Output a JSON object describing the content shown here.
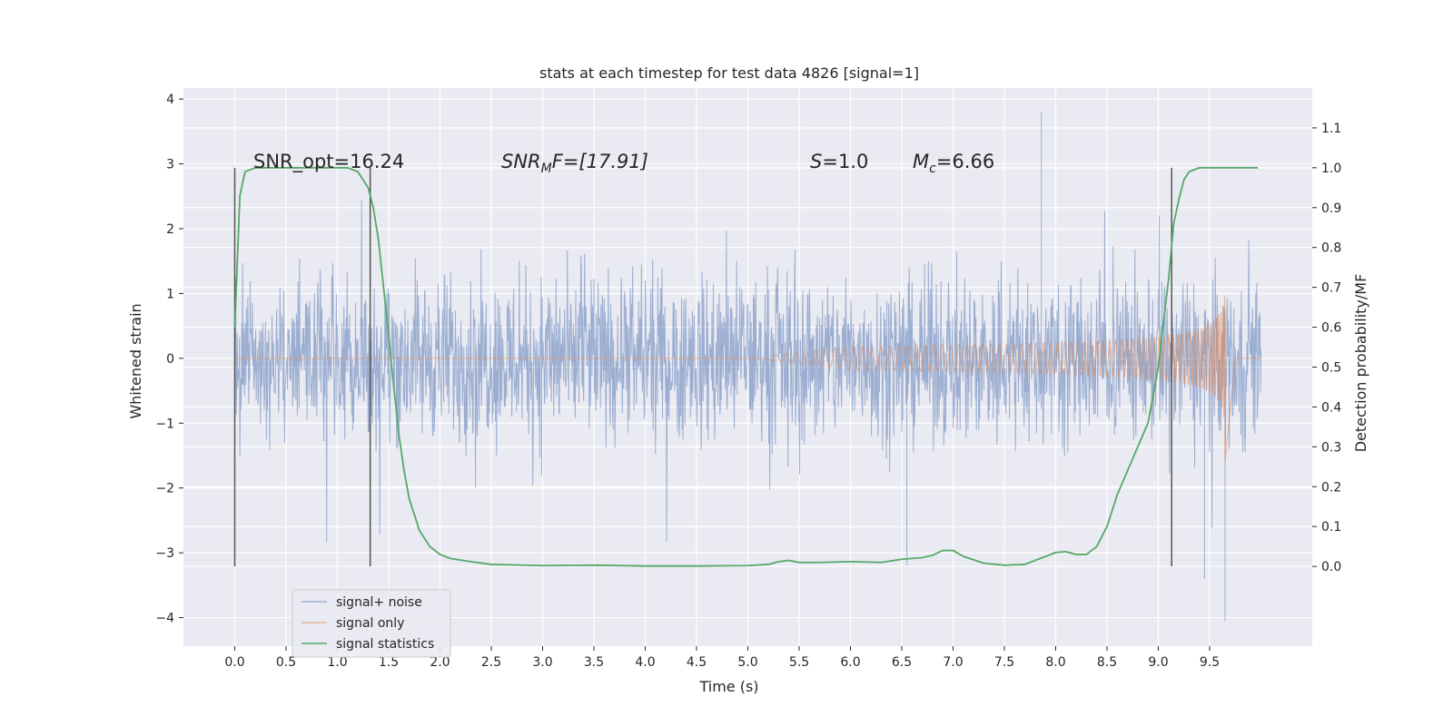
{
  "chart_data": {
    "type": "line",
    "title": "stats at each timestep for test data 4826 [signal=1]",
    "xlabel": "Time (s)",
    "ylabel": "Whitened strain",
    "ylabel_right": "Detection probability/MF",
    "xlim": [
      -0.5,
      10.5
    ],
    "ylim": [
      -4.44,
      4.17
    ],
    "ylim_right": [
      -0.2,
      1.2
    ],
    "x_ticks": [
      "0.0",
      "0.5",
      "1.0",
      "1.5",
      "2.0",
      "2.5",
      "3.0",
      "3.5",
      "4.0",
      "4.5",
      "5.0",
      "5.5",
      "6.0",
      "6.5",
      "7.0",
      "7.5",
      "8.0",
      "8.5",
      "9.0",
      "9.5"
    ],
    "y_ticks": [
      "4",
      "3",
      "2",
      "1",
      "0",
      "−1",
      "−2",
      "−3",
      "−4"
    ],
    "y_ticks_right": [
      "1.1",
      "1.0",
      "0.9",
      "0.8",
      "0.7",
      "0.6",
      "0.5",
      "0.4",
      "0.3",
      "0.2",
      "0.1",
      "0.0"
    ],
    "annotations": {
      "snr_opt": "SNR_opt=16.24",
      "snr_mf_main": "SNR",
      "snr_mf_sub": "M",
      "snr_mf_rest": "F=[17.91]",
      "s_main": "S",
      "s_rest": "=1.0",
      "mc_main": "M",
      "mc_sub": "c",
      "mc_rest": "=6.66"
    },
    "vertical_markers": [
      0.0,
      1.32,
      9.13
    ],
    "noise": {
      "t_start": 0.0,
      "t_end": 10.0,
      "typical_range": [
        -1.3,
        1.7
      ],
      "min": -4.05,
      "max": 3.8
    },
    "chirp": {
      "start": 5.2,
      "merger": 9.65,
      "peak_amplitude": 1.0,
      "ringdown_end": 9.75
    },
    "series": [
      {
        "name": "signal+ noise",
        "color": "#4c72b0",
        "axis": "left"
      },
      {
        "name": "signal only",
        "color": "#dd8452",
        "axis": "left"
      },
      {
        "name": "signal statistics",
        "color": "#55a868",
        "axis": "right",
        "x": [
          0.0,
          0.05,
          0.1,
          0.15,
          0.2,
          0.3,
          0.5,
          0.8,
          1.0,
          1.1,
          1.2,
          1.3,
          1.35,
          1.4,
          1.45,
          1.5,
          1.55,
          1.6,
          1.65,
          1.7,
          1.8,
          1.9,
          2.0,
          2.1,
          2.3,
          2.5,
          3.0,
          3.5,
          4.0,
          4.5,
          5.0,
          5.2,
          5.3,
          5.4,
          5.5,
          5.7,
          6.0,
          6.3,
          6.5,
          6.7,
          6.8,
          6.9,
          7.0,
          7.1,
          7.3,
          7.5,
          7.7,
          7.9,
          8.0,
          8.1,
          8.2,
          8.3,
          8.4,
          8.5,
          8.6,
          8.7,
          8.8,
          8.9,
          9.0,
          9.1,
          9.15,
          9.2,
          9.25,
          9.3,
          9.4,
          9.5,
          9.6,
          9.7,
          9.8,
          9.9,
          9.97
        ],
        "values": [
          0.6,
          0.93,
          0.99,
          0.995,
          1.0,
          1.0,
          1.0,
          1.0,
          1.0,
          1.0,
          0.99,
          0.95,
          0.9,
          0.82,
          0.7,
          0.58,
          0.45,
          0.33,
          0.24,
          0.17,
          0.09,
          0.05,
          0.03,
          0.02,
          0.012,
          0.005,
          0.002,
          0.003,
          0.001,
          0.001,
          0.002,
          0.005,
          0.012,
          0.015,
          0.01,
          0.01,
          0.012,
          0.01,
          0.018,
          0.022,
          0.028,
          0.04,
          0.04,
          0.025,
          0.008,
          0.003,
          0.005,
          0.025,
          0.035,
          0.037,
          0.03,
          0.03,
          0.05,
          0.1,
          0.18,
          0.24,
          0.3,
          0.36,
          0.5,
          0.72,
          0.86,
          0.92,
          0.97,
          0.99,
          1.0,
          1.0,
          1.0,
          1.0,
          1.0,
          1.0,
          1.0
        ]
      }
    ],
    "legend_position": "lower-left"
  }
}
